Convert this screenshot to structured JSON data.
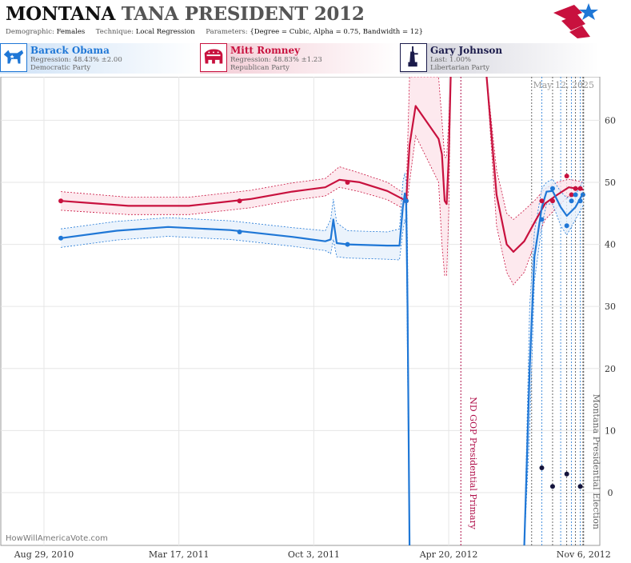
{
  "header": {
    "title_state": "MONTANA",
    "title_rest": "TANA PRESIDENT 2012",
    "demographic_label": "Demographic:",
    "demographic_value": "Females",
    "technique_label": "Technique:",
    "technique_value": "Local Regression",
    "parameters_label": "Parameters:",
    "parameters_value": "{Degree = Cubic, Alpha = 0.75, Bandwidth = 12}"
  },
  "candidates": [
    {
      "name": "Barack Obama",
      "line2": "Regression: 48.43% ±2.00",
      "line3": "Democratic Party",
      "color": "#1f77d6",
      "icon": "donkey-icon"
    },
    {
      "name": "Mitt Romney",
      "line2": "Regression: 48.83% ±1.23",
      "line3": "Republican Party",
      "color": "#c8113e",
      "icon": "elephant-icon"
    },
    {
      "name": "Gary Johnson",
      "line2": "Last: 1.00%",
      "line3": "Libertarian Party",
      "color": "#1a1a4a",
      "icon": "statue-of-liberty-icon"
    }
  ],
  "chart_data": {
    "type": "line",
    "date_label": "May 12, 2025",
    "watermark": "HowWillAmericaVote.com",
    "x_range": [
      "2010-06-26",
      "2012-11-30"
    ],
    "y_range": [
      -8.5,
      67
    ],
    "y_ticks": [
      0,
      10,
      20,
      30,
      40,
      50,
      60
    ],
    "x_ticks": [
      {
        "date": "2010-08-29",
        "label": "Aug 29, 2010"
      },
      {
        "date": "2011-03-17",
        "label": "Mar 17, 2011"
      },
      {
        "date": "2011-10-03",
        "label": "Oct 3, 2011"
      },
      {
        "date": "2012-04-20",
        "label": "Apr 20, 2012"
      },
      {
        "date": "2012-11-06",
        "label": "Nov 6, 2012"
      }
    ],
    "events": [
      {
        "date": "2012-05-08",
        "label": "ND GOP Presidential Primary",
        "color": "#b0104a"
      },
      {
        "date": "2012-11-06",
        "label": "Montana Presidential Election",
        "color": "#666666"
      }
    ],
    "poll_dates": [
      "2012-08-21",
      "2012-09-05",
      "2012-09-21",
      "2012-10-03",
      "2012-10-12",
      "2012-10-19",
      "2012-10-25",
      "2012-11-01",
      "2012-11-05"
    ],
    "series": [
      {
        "name": "Mitt Romney",
        "color": "#c8113e",
        "band": "#fde4ea",
        "line": [
          [
            "2010-09-23",
            47
          ],
          [
            "2011-01-01",
            46.2
          ],
          [
            "2011-04-01",
            46.2
          ],
          [
            "2011-07-01",
            47.3
          ],
          [
            "2011-09-01",
            48.5
          ],
          [
            "2011-10-20",
            49.2
          ],
          [
            "2011-11-10",
            50.4
          ],
          [
            "2011-12-10",
            50
          ],
          [
            "2012-01-20",
            48.6
          ],
          [
            "2012-02-17",
            47
          ],
          [
            "2012-02-22",
            56
          ],
          [
            "2012-03-02",
            62.3
          ],
          [
            "2012-04-05",
            57
          ],
          [
            "2012-04-10",
            54.5
          ],
          [
            "2012-04-14",
            47
          ],
          [
            "2012-04-17",
            46.5
          ],
          [
            "2012-04-20",
            54
          ],
          [
            "2012-04-23",
            74
          ],
          [
            "2012-06-15",
            74
          ],
          [
            "2012-06-30",
            48
          ],
          [
            "2012-07-15",
            40
          ],
          [
            "2012-07-25",
            38.8
          ],
          [
            "2012-08-10",
            40.5
          ],
          [
            "2012-08-25",
            43.5
          ],
          [
            "2012-09-10",
            46.6
          ],
          [
            "2012-09-28",
            48
          ],
          [
            "2012-10-15",
            49.2
          ],
          [
            "2012-11-06",
            48.8
          ]
        ],
        "upper": [
          [
            "2010-09-23",
            48.5
          ],
          [
            "2011-01-01",
            47.6
          ],
          [
            "2011-04-01",
            47.6
          ],
          [
            "2011-07-01",
            48.7
          ],
          [
            "2011-09-01",
            49.9
          ],
          [
            "2011-10-20",
            50.6
          ],
          [
            "2011-11-10",
            52.5
          ],
          [
            "2011-12-10",
            51.5
          ],
          [
            "2012-01-20",
            50
          ],
          [
            "2012-02-17",
            48
          ],
          [
            "2012-02-22",
            67
          ],
          [
            "2012-03-02",
            67
          ],
          [
            "2012-04-05",
            67
          ],
          [
            "2012-04-10",
            60
          ],
          [
            "2012-04-14",
            54
          ],
          [
            "2012-04-17",
            54
          ],
          [
            "2012-04-20",
            60
          ],
          [
            "2012-04-23",
            74
          ],
          [
            "2012-06-15",
            74
          ],
          [
            "2012-06-30",
            52
          ],
          [
            "2012-07-15",
            45
          ],
          [
            "2012-07-25",
            44
          ],
          [
            "2012-08-10",
            45.5
          ],
          [
            "2012-08-25",
            47
          ],
          [
            "2012-09-10",
            49
          ],
          [
            "2012-09-28",
            50
          ],
          [
            "2012-10-15",
            50.5
          ],
          [
            "2012-11-06",
            50
          ]
        ],
        "lower": [
          [
            "2010-09-23",
            45.5
          ],
          [
            "2011-01-01",
            44.8
          ],
          [
            "2011-04-01",
            44.8
          ],
          [
            "2011-07-01",
            45.9
          ],
          [
            "2011-09-01",
            47.1
          ],
          [
            "2011-10-20",
            47.8
          ],
          [
            "2011-11-10",
            49.2
          ],
          [
            "2011-12-10",
            48.5
          ],
          [
            "2012-01-20",
            47.2
          ],
          [
            "2012-02-17",
            45.5
          ],
          [
            "2012-02-22",
            50
          ],
          [
            "2012-03-02",
            57.5
          ],
          [
            "2012-04-05",
            50
          ],
          [
            "2012-04-10",
            40
          ],
          [
            "2012-04-14",
            35
          ],
          [
            "2012-04-17",
            35
          ],
          [
            "2012-04-20",
            45
          ],
          [
            "2012-04-23",
            74
          ],
          [
            "2012-06-15",
            74
          ],
          [
            "2012-06-30",
            43
          ],
          [
            "2012-07-15",
            35.5
          ],
          [
            "2012-07-25",
            33.5
          ],
          [
            "2012-08-10",
            35.5
          ],
          [
            "2012-08-25",
            40
          ],
          [
            "2012-09-10",
            44
          ],
          [
            "2012-09-28",
            46
          ],
          [
            "2012-10-15",
            47.8
          ],
          [
            "2012-11-06",
            47.6
          ]
        ],
        "points": [
          [
            "2010-09-23",
            47
          ],
          [
            "2011-06-15",
            47
          ],
          [
            "2011-11-22",
            50
          ],
          [
            "2012-02-17",
            47
          ],
          [
            "2012-09-05",
            47
          ],
          [
            "2012-09-21",
            47
          ],
          [
            "2012-10-12",
            51
          ],
          [
            "2012-10-19",
            48
          ],
          [
            "2012-10-25",
            49
          ],
          [
            "2012-11-01",
            49
          ]
        ]
      },
      {
        "name": "Barack Obama",
        "color": "#1f77d6",
        "band": "#e6f0fb",
        "line": [
          [
            "2010-09-23",
            41
          ],
          [
            "2010-12-15",
            42.2
          ],
          [
            "2011-03-01",
            42.8
          ],
          [
            "2011-06-01",
            42.3
          ],
          [
            "2011-09-01",
            41.2
          ],
          [
            "2011-10-20",
            40.5
          ],
          [
            "2011-10-28",
            40.8
          ],
          [
            "2011-11-01",
            44
          ],
          [
            "2011-11-06",
            40.2
          ],
          [
            "2011-11-22",
            40
          ],
          [
            "2012-01-20",
            39.8
          ],
          [
            "2012-02-07",
            39.8
          ],
          [
            "2012-02-12",
            46
          ],
          [
            "2012-02-15",
            48.2
          ],
          [
            "2012-02-17",
            47
          ],
          [
            "2012-02-19",
            30
          ],
          [
            "2012-02-22",
            -9
          ],
          [
            "2012-08-10",
            -9
          ],
          [
            "2012-08-18",
            20
          ],
          [
            "2012-08-25",
            38
          ],
          [
            "2012-09-05",
            46
          ],
          [
            "2012-09-12",
            48.5
          ],
          [
            "2012-09-21",
            48.6
          ],
          [
            "2012-10-03",
            46
          ],
          [
            "2012-10-12",
            44.6
          ],
          [
            "2012-10-25",
            46
          ],
          [
            "2012-11-06",
            48.4
          ]
        ],
        "upper": [
          [
            "2010-09-23",
            42.5
          ],
          [
            "2010-12-15",
            43.7
          ],
          [
            "2011-03-01",
            44.3
          ],
          [
            "2011-06-01",
            43.8
          ],
          [
            "2011-09-01",
            42.7
          ],
          [
            "2011-10-20",
            42.2
          ],
          [
            "2011-10-28",
            44
          ],
          [
            "2011-11-01",
            47.3
          ],
          [
            "2011-11-06",
            43.5
          ],
          [
            "2011-11-22",
            42.2
          ],
          [
            "2012-01-20",
            42
          ],
          [
            "2012-02-07",
            42.5
          ],
          [
            "2012-02-12",
            50
          ],
          [
            "2012-02-15",
            51.5
          ],
          [
            "2012-02-17",
            50
          ],
          [
            "2012-02-19",
            40
          ],
          [
            "2012-02-22",
            -9
          ],
          [
            "2012-08-10",
            -9
          ],
          [
            "2012-08-18",
            30
          ],
          [
            "2012-08-25",
            42
          ],
          [
            "2012-09-05",
            49
          ],
          [
            "2012-09-12",
            50
          ],
          [
            "2012-09-21",
            50.5
          ],
          [
            "2012-10-03",
            48.5
          ],
          [
            "2012-10-12",
            47.5
          ],
          [
            "2012-10-25",
            48
          ],
          [
            "2012-11-06",
            50.4
          ]
        ],
        "lower": [
          [
            "2010-09-23",
            39.5
          ],
          [
            "2010-12-15",
            40.7
          ],
          [
            "2011-03-01",
            41.3
          ],
          [
            "2011-06-01",
            40.8
          ],
          [
            "2011-09-01",
            39.7
          ],
          [
            "2011-10-20",
            39
          ],
          [
            "2011-10-28",
            38.5
          ],
          [
            "2011-11-01",
            40.8
          ],
          [
            "2011-11-06",
            38
          ],
          [
            "2011-11-22",
            37.8
          ],
          [
            "2012-01-20",
            37.6
          ],
          [
            "2012-02-07",
            37.5
          ],
          [
            "2012-02-12",
            42
          ],
          [
            "2012-02-15",
            44
          ],
          [
            "2012-02-17",
            43
          ],
          [
            "2012-02-19",
            20
          ],
          [
            "2012-02-22",
            -9
          ],
          [
            "2012-08-10",
            -9
          ],
          [
            "2012-08-18",
            10
          ],
          [
            "2012-08-25",
            34
          ],
          [
            "2012-09-05",
            43
          ],
          [
            "2012-09-12",
            46.5
          ],
          [
            "2012-09-21",
            46.5
          ],
          [
            "2012-10-03",
            43
          ],
          [
            "2012-10-12",
            41.5
          ],
          [
            "2012-10-25",
            44
          ],
          [
            "2012-11-06",
            46.4
          ]
        ],
        "points": [
          [
            "2010-09-23",
            41
          ],
          [
            "2011-06-15",
            42
          ],
          [
            "2011-11-22",
            40
          ],
          [
            "2012-02-17",
            47
          ],
          [
            "2012-09-05",
            44
          ],
          [
            "2012-09-21",
            49
          ],
          [
            "2012-10-12",
            43
          ],
          [
            "2012-10-19",
            47
          ],
          [
            "2012-10-25",
            48
          ],
          [
            "2012-11-01",
            47
          ],
          [
            "2012-11-05",
            48
          ]
        ]
      },
      {
        "name": "Gary Johnson",
        "color": "#14143c",
        "points": [
          [
            "2012-09-05",
            4
          ],
          [
            "2012-09-21",
            1
          ],
          [
            "2012-10-12",
            3
          ],
          [
            "2012-11-01",
            1
          ]
        ]
      }
    ]
  }
}
